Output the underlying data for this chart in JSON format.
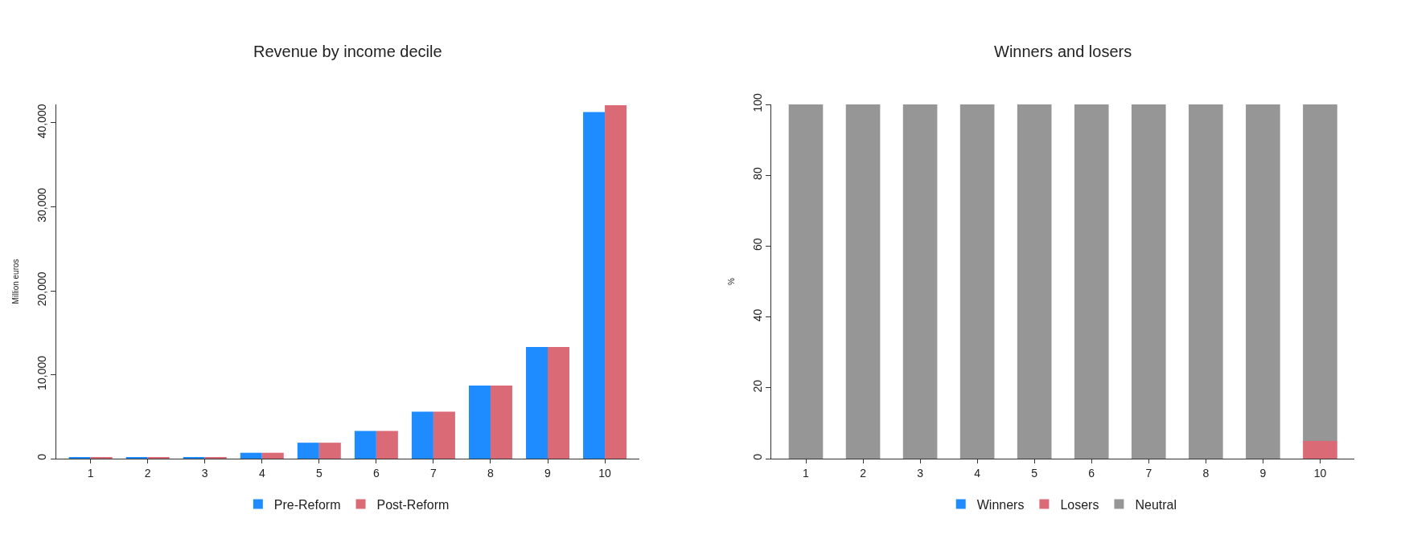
{
  "chart_data": [
    {
      "type": "bar",
      "title": "Revenue by income decile",
      "ylabel": "Million euros",
      "categories": [
        "1",
        "2",
        "3",
        "4",
        "5",
        "6",
        "7",
        "8",
        "9",
        "10"
      ],
      "series": [
        {
          "name": "Pre-Reform",
          "color": "#1e8cff",
          "values": [
            100,
            100,
            100,
            700,
            1900,
            3300,
            5600,
            8700,
            13300,
            41300
          ]
        },
        {
          "name": "Post-Reform",
          "color": "#d96a76",
          "values": [
            100,
            100,
            100,
            700,
            1900,
            3300,
            5600,
            8700,
            13300,
            42100
          ]
        }
      ],
      "ylim": [
        0,
        42200
      ],
      "yticks": [
        0,
        {
          "value": 10000,
          "label": "10,000"
        },
        {
          "value": 20000,
          "label": "20,000"
        },
        {
          "value": 30000,
          "label": "30,000"
        },
        {
          "value": 40000,
          "label": "40,000"
        }
      ],
      "legend": "bottom"
    },
    {
      "type": "bar",
      "title": "Winners and losers",
      "ylabel": "%",
      "categories": [
        "1",
        "2",
        "3",
        "4",
        "5",
        "6",
        "7",
        "8",
        "9",
        "10"
      ],
      "stacked": true,
      "series": [
        {
          "name": "Winners",
          "color": "#1e8cff",
          "values": [
            0,
            0,
            0,
            0,
            0,
            0,
            0,
            0,
            0,
            0
          ]
        },
        {
          "name": "Losers",
          "color": "#d96a76",
          "values": [
            0,
            0,
            0,
            0,
            0,
            0,
            0,
            0,
            0,
            5
          ]
        },
        {
          "name": "Neutral",
          "color": "#969696",
          "values": [
            100,
            100,
            100,
            100,
            100,
            100,
            100,
            100,
            100,
            95
          ]
        }
      ],
      "ylim": [
        0,
        100
      ],
      "yticks": [
        0,
        20,
        40,
        60,
        80,
        100
      ],
      "legend": "bottom"
    }
  ]
}
